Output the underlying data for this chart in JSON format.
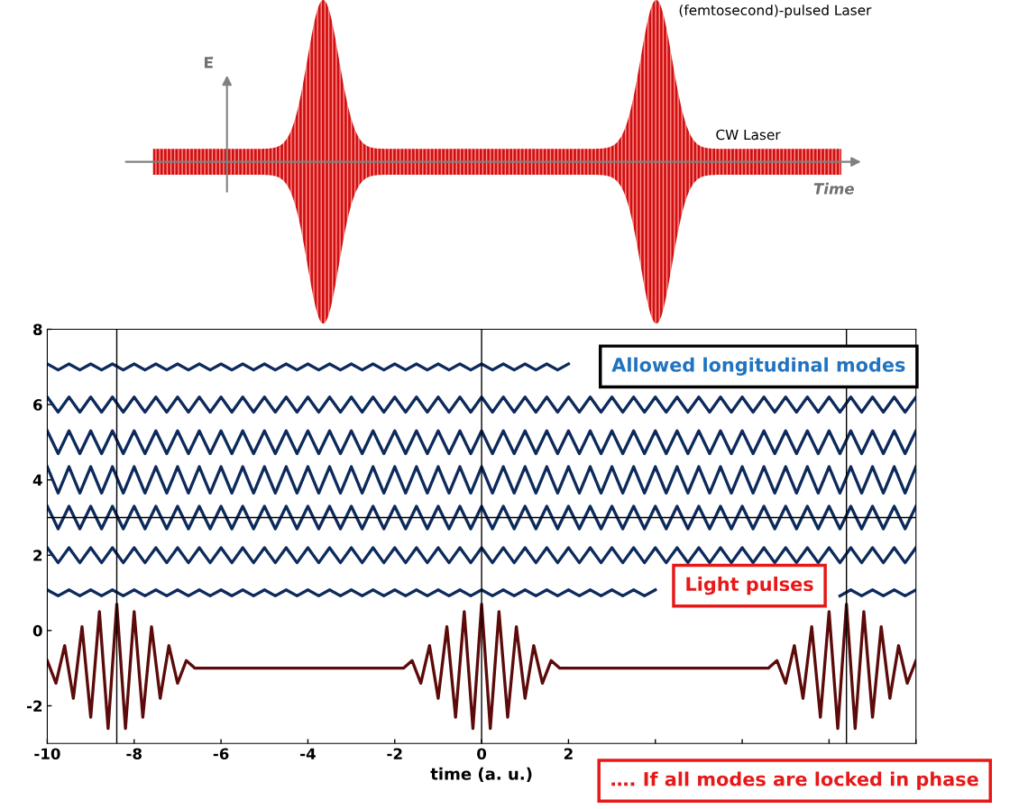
{
  "chart_data": [
    {
      "type": "other",
      "xlabel": "Time",
      "ylabel": "E⃗",
      "annotations": [
        "(femtosecond)-pulsed Laser",
        "CW Laser"
      ]
    },
    {
      "type": "line",
      "xlabel": "time (a. u.)",
      "xlim": [
        -10,
        10
      ],
      "ylim": [
        -3,
        8
      ],
      "xticks": [
        -10,
        -8,
        -6,
        -4,
        -2,
        0,
        2,
        {
          "value": 4,
          "label": null
        },
        {
          "value": 6,
          "label": null
        },
        {
          "value": 8,
          "label": null
        },
        {
          "value": 10,
          "label": null
        }
      ],
      "yticks": [
        -2,
        0,
        2,
        4,
        6,
        8
      ],
      "grid": false,
      "legend": false,
      "marker": "none",
      "line_style": "solid",
      "x": [
        -10,
        -9.75,
        -9.5,
        -9.25,
        -9,
        -8.75,
        -8.5,
        -8.25,
        -8,
        -7.75,
        -7.5,
        -7.25,
        -7,
        -6.75,
        -6.5,
        -6.25,
        -6,
        -5.75,
        -5.5,
        -5.25,
        -5,
        -4.75,
        -4.5,
        -4.25,
        -4,
        -3.75,
        -3.5,
        -3.25,
        -3,
        -2.75,
        -2.5,
        -2.25,
        -2,
        -1.75,
        -1.5,
        -1.25,
        -1,
        -0.75,
        -0.5,
        -0.25,
        0,
        0.25,
        0.5,
        0.75,
        1,
        1.25,
        1.5,
        1.75,
        2,
        2.25,
        2.5,
        2.75,
        3,
        3.25,
        3.5,
        3.75,
        4,
        4.25,
        4.5,
        4.75,
        5,
        5.25,
        5.5,
        5.75,
        6,
        6.25,
        6.5,
        6.75,
        7,
        7.25,
        7.5,
        7.75,
        8,
        8.25,
        8.5,
        8.75,
        9,
        9.25,
        9.5,
        9.75,
        10
      ],
      "series": [
        {
          "color": "#0d2a5c",
          "values": [
            7.08,
            6.92,
            7.08,
            6.92,
            7.08,
            6.92,
            7.08,
            6.92,
            7.08,
            6.92,
            7.08,
            6.92,
            7.08,
            6.92,
            7.08,
            6.92,
            7.08,
            6.92,
            7.08,
            6.92,
            7.08,
            6.92,
            7.08,
            6.92,
            7.08,
            6.92,
            7.08,
            6.92,
            7.08,
            6.92,
            7.08,
            6.92,
            7.08,
            6.92,
            7.08,
            6.92,
            7.08,
            6.92,
            7.08,
            6.92,
            7.08,
            6.92,
            7.08,
            6.92,
            7.08,
            6.92,
            7.08,
            6.92,
            7.08,
            null,
            null,
            null,
            null,
            null,
            null,
            null,
            null,
            null,
            null,
            null,
            null,
            null,
            null,
            null,
            null,
            null,
            null,
            null,
            null,
            null,
            null,
            null,
            null,
            null,
            null,
            null,
            null,
            null,
            null,
            null,
            null
          ]
        },
        {
          "color": "#0d2a5c",
          "values": [
            6.2,
            5.8,
            6.2,
            5.8,
            6.2,
            5.8,
            6.2,
            5.8,
            6.2,
            5.8,
            6.2,
            5.8,
            6.2,
            5.8,
            6.2,
            5.8,
            6.2,
            5.8,
            6.2,
            5.8,
            6.2,
            5.8,
            6.2,
            5.8,
            6.2,
            5.8,
            6.2,
            5.8,
            6.2,
            5.8,
            6.2,
            5.8,
            6.2,
            5.8,
            6.2,
            5.8,
            6.2,
            5.8,
            6.2,
            5.8,
            6.2,
            5.8,
            6.2,
            5.8,
            6.2,
            5.8,
            6.2,
            5.8,
            6.2,
            5.8,
            6.2,
            5.8,
            6.2,
            5.8,
            6.2,
            5.8,
            6.2,
            5.8,
            6.2,
            5.8,
            6.2,
            5.8,
            6.2,
            5.8,
            6.2,
            5.8,
            6.2,
            5.8,
            6.2,
            5.8,
            6.2,
            5.8,
            6.2,
            5.8,
            6.2,
            5.8,
            6.2,
            5.8,
            6.2,
            5.8,
            6.2
          ]
        },
        {
          "color": "#0d2a5c",
          "values": [
            5.3,
            4.7,
            5.3,
            4.7,
            5.3,
            4.7,
            5.3,
            4.7,
            5.3,
            4.7,
            5.3,
            4.7,
            5.3,
            4.7,
            5.3,
            4.7,
            5.3,
            4.7,
            5.3,
            4.7,
            5.3,
            4.7,
            5.3,
            4.7,
            5.3,
            4.7,
            5.3,
            4.7,
            5.3,
            4.7,
            5.3,
            4.7,
            5.3,
            4.7,
            5.3,
            4.7,
            5.3,
            4.7,
            5.3,
            4.7,
            5.3,
            4.7,
            5.3,
            4.7,
            5.3,
            4.7,
            5.3,
            4.7,
            5.3,
            4.7,
            5.3,
            4.7,
            5.3,
            4.7,
            5.3,
            4.7,
            5.3,
            4.7,
            5.3,
            4.7,
            5.3,
            4.7,
            5.3,
            4.7,
            5.3,
            4.7,
            5.3,
            4.7,
            5.3,
            4.7,
            5.3,
            4.7,
            5.3,
            4.7,
            5.3,
            4.7,
            5.3,
            4.7,
            5.3,
            4.7,
            5.3
          ]
        },
        {
          "color": "#0d2a5c",
          "values": [
            4.35,
            3.65,
            4.35,
            3.65,
            4.35,
            3.65,
            4.35,
            3.65,
            4.35,
            3.65,
            4.35,
            3.65,
            4.35,
            3.65,
            4.35,
            3.65,
            4.35,
            3.65,
            4.35,
            3.65,
            4.35,
            3.65,
            4.35,
            3.65,
            4.35,
            3.65,
            4.35,
            3.65,
            4.35,
            3.65,
            4.35,
            3.65,
            4.35,
            3.65,
            4.35,
            3.65,
            4.35,
            3.65,
            4.35,
            3.65,
            4.35,
            3.65,
            4.35,
            3.65,
            4.35,
            3.65,
            4.35,
            3.65,
            4.35,
            3.65,
            4.35,
            3.65,
            4.35,
            3.65,
            4.35,
            3.65,
            4.35,
            3.65,
            4.35,
            3.65,
            4.35,
            3.65,
            4.35,
            3.65,
            4.35,
            3.65,
            4.35,
            3.65,
            4.35,
            3.65,
            4.35,
            3.65,
            4.35,
            3.65,
            4.35,
            3.65,
            4.35,
            3.65,
            4.35,
            3.65,
            4.35
          ]
        },
        {
          "color": "#0d2a5c",
          "values": [
            3.3,
            2.7,
            3.3,
            2.7,
            3.3,
            2.7,
            3.3,
            2.7,
            3.3,
            2.7,
            3.3,
            2.7,
            3.3,
            2.7,
            3.3,
            2.7,
            3.3,
            2.7,
            3.3,
            2.7,
            3.3,
            2.7,
            3.3,
            2.7,
            3.3,
            2.7,
            3.3,
            2.7,
            3.3,
            2.7,
            3.3,
            2.7,
            3.3,
            2.7,
            3.3,
            2.7,
            3.3,
            2.7,
            3.3,
            2.7,
            3.3,
            2.7,
            3.3,
            2.7,
            3.3,
            2.7,
            3.3,
            2.7,
            3.3,
            2.7,
            3.3,
            2.7,
            3.3,
            2.7,
            3.3,
            2.7,
            3.3,
            2.7,
            3.3,
            2.7,
            3.3,
            2.7,
            3.3,
            2.7,
            3.3,
            2.7,
            3.3,
            2.7,
            3.3,
            2.7,
            3.3,
            2.7,
            3.3,
            2.7,
            3.3,
            2.7,
            3.3,
            2.7,
            3.3,
            2.7,
            3.3
          ]
        },
        {
          "color": "#0d2a5c",
          "values": [
            2.2,
            1.8,
            2.2,
            1.8,
            2.2,
            1.8,
            2.2,
            1.8,
            2.2,
            1.8,
            2.2,
            1.8,
            2.2,
            1.8,
            2.2,
            1.8,
            2.2,
            1.8,
            2.2,
            1.8,
            2.2,
            1.8,
            2.2,
            1.8,
            2.2,
            1.8,
            2.2,
            1.8,
            2.2,
            1.8,
            2.2,
            1.8,
            2.2,
            1.8,
            2.2,
            1.8,
            2.2,
            1.8,
            2.2,
            1.8,
            2.2,
            1.8,
            2.2,
            1.8,
            2.2,
            1.8,
            2.2,
            1.8,
            2.2,
            1.8,
            2.2,
            1.8,
            2.2,
            1.8,
            2.2,
            1.8,
            2.2,
            1.8,
            2.2,
            1.8,
            2.2,
            1.8,
            2.2,
            1.8,
            2.2,
            1.8,
            2.2,
            1.8,
            2.2,
            1.8,
            2.2,
            1.8,
            2.2,
            1.8,
            2.2,
            1.8,
            2.2,
            1.8,
            2.2,
            1.8,
            2.2
          ]
        },
        {
          "color": "#0d2a5c",
          "values": [
            1.08,
            0.92,
            1.08,
            0.92,
            1.08,
            0.92,
            1.08,
            0.92,
            1.08,
            0.92,
            1.08,
            0.92,
            1.08,
            0.92,
            1.08,
            0.92,
            1.08,
            0.92,
            1.08,
            0.92,
            1.08,
            0.92,
            1.08,
            0.92,
            1.08,
            0.92,
            1.08,
            0.92,
            1.08,
            0.92,
            1.08,
            0.92,
            1.08,
            0.92,
            1.08,
            0.92,
            1.08,
            0.92,
            1.08,
            0.92,
            1.08,
            0.92,
            1.08,
            0.92,
            1.08,
            0.92,
            1.08,
            0.92,
            1.08,
            0.92,
            1.08,
            0.92,
            1.08,
            0.92,
            1.08,
            0.92,
            1.08,
            null,
            null,
            null,
            null,
            null,
            null,
            null,
            null,
            null,
            null,
            null,
            null,
            null,
            null,
            null,
            null,
            0.92,
            1.08,
            0.92,
            1.08,
            0.92,
            1.08,
            0.92,
            1.08
          ]
        },
        {
          "color": "#5c0a0a",
          "x": [
            -10,
            -9.8,
            -9.6,
            -9.4,
            -9.2,
            -9,
            -8.8,
            -8.6,
            -8.4,
            -8.2,
            -8,
            -7.8,
            -7.6,
            -7.4,
            -7.2,
            -7,
            -6.8,
            -6.6,
            -1.8,
            -1.6,
            -1.4,
            -1.2,
            -1,
            -0.8,
            -0.6,
            -0.4,
            -0.2,
            0,
            0.2,
            0.4,
            0.6,
            0.8,
            1,
            1.2,
            1.4,
            1.6,
            1.8,
            6.6,
            6.8,
            7,
            7.2,
            7.4,
            7.6,
            7.8,
            8,
            8.2,
            8.4,
            8.6,
            8.8,
            9,
            9.2,
            9.4,
            9.6,
            9.8,
            10
          ],
          "values": [
            -0.8,
            -1.4,
            -0.4,
            -1.8,
            0.1,
            -2.3,
            0.5,
            -2.6,
            0.7,
            -2.6,
            0.5,
            -2.3,
            0.1,
            -1.8,
            -0.4,
            -1.4,
            -0.8,
            -1.0,
            -1.0,
            -0.8,
            -1.4,
            -0.4,
            -1.8,
            0.1,
            -2.3,
            0.5,
            -2.6,
            0.7,
            -2.6,
            0.5,
            -2.3,
            0.1,
            -1.8,
            -0.4,
            -1.4,
            -0.8,
            -1.0,
            -1.0,
            -0.8,
            -1.4,
            -0.4,
            -1.8,
            0.1,
            -2.3,
            0.5,
            -2.6,
            0.7,
            -2.6,
            0.5,
            -2.3,
            0.1,
            -1.8,
            -0.4,
            -1.4,
            -0.8
          ]
        }
      ],
      "ref_lines": [
        {
          "axis": "x",
          "value": -8.4,
          "color": "#000000"
        },
        {
          "axis": "x",
          "value": 0,
          "color": "#000000"
        },
        {
          "axis": "x",
          "value": 8.4,
          "color": "#000000"
        },
        {
          "axis": "y",
          "value": 3,
          "color": "#000000"
        }
      ],
      "annotations": [
        "Allowed longitudinal modes",
        "Light pulses",
        "…. If all modes are locked in phase"
      ]
    }
  ]
}
